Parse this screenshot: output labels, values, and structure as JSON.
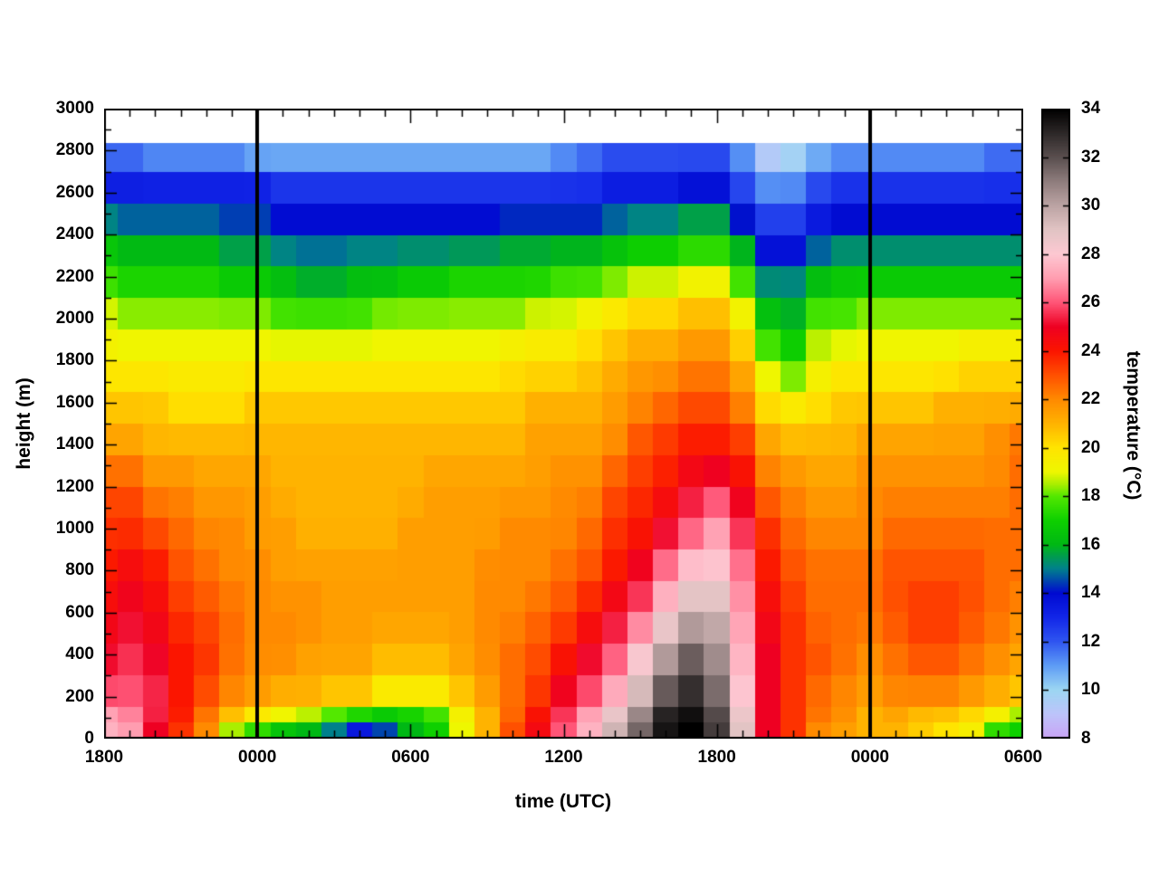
{
  "figure": {
    "background": "#ffffff",
    "frame_color": "#000000"
  },
  "chart_data": {
    "type": "heatmap",
    "title": "",
    "xlabel": "time (UTC)",
    "ylabel": "height (m)",
    "colorbar_label": "temperature (°C)",
    "x_range_hours": [
      0,
      36
    ],
    "x_minor_step_hours": 1,
    "xticks": [
      {
        "hour": 0,
        "label": "1800"
      },
      {
        "hour": 6,
        "label": "0000"
      },
      {
        "hour": 12,
        "label": "0600"
      },
      {
        "hour": 18,
        "label": "1200"
      },
      {
        "hour": 24,
        "label": "1800"
      },
      {
        "hour": 30,
        "label": "0000"
      },
      {
        "hour": 36,
        "label": "0600"
      }
    ],
    "ylim": [
      0,
      3000
    ],
    "y_minor_step": 100,
    "yticks": [
      {
        "value": 0,
        "label": "0"
      },
      {
        "value": 200,
        "label": "200"
      },
      {
        "value": 400,
        "label": "400"
      },
      {
        "value": 600,
        "label": "600"
      },
      {
        "value": 800,
        "label": "800"
      },
      {
        "value": 1000,
        "label": "1000"
      },
      {
        "value": 1200,
        "label": "1200"
      },
      {
        "value": 1400,
        "label": "1400"
      },
      {
        "value": 1600,
        "label": "1600"
      },
      {
        "value": 1800,
        "label": "1800"
      },
      {
        "value": 2000,
        "label": "2000"
      },
      {
        "value": 2200,
        "label": "2200"
      },
      {
        "value": 2400,
        "label": "2400"
      },
      {
        "value": 2600,
        "label": "2600"
      },
      {
        "value": 2800,
        "label": "2800"
      },
      {
        "value": 3000,
        "label": "3000"
      }
    ],
    "clim": [
      8,
      34
    ],
    "cticks": [
      {
        "value": 8,
        "label": "8"
      },
      {
        "value": 10,
        "label": "10"
      },
      {
        "value": 12,
        "label": "12"
      },
      {
        "value": 14,
        "label": "14"
      },
      {
        "value": 16,
        "label": "16"
      },
      {
        "value": 18,
        "label": "18"
      },
      {
        "value": 20,
        "label": "20"
      },
      {
        "value": 22,
        "label": "22"
      },
      {
        "value": 24,
        "label": "24"
      },
      {
        "value": 26,
        "label": "26"
      },
      {
        "value": 28,
        "label": "28"
      },
      {
        "value": 30,
        "label": "30"
      },
      {
        "value": 32,
        "label": "32"
      },
      {
        "value": 34,
        "label": "34"
      }
    ],
    "data_top_height_m": 2840,
    "cell_height_m": 150,
    "vertical_lines_hours": [
      6,
      30
    ],
    "grid": false,
    "colormap": [
      [
        8,
        "#C9A4F5"
      ],
      [
        9,
        "#BDC4FA"
      ],
      [
        10,
        "#9CD6F2"
      ],
      [
        11,
        "#5E9CF5"
      ],
      [
        12,
        "#2F55F0"
      ],
      [
        13,
        "#1226E8"
      ],
      [
        14,
        "#000AD1"
      ],
      [
        15,
        "#00808C"
      ],
      [
        16,
        "#00B814"
      ],
      [
        17,
        "#0ED000"
      ],
      [
        18,
        "#53E800"
      ],
      [
        18.5,
        "#AAEE00"
      ],
      [
        19,
        "#EEF700"
      ],
      [
        20,
        "#FFE400"
      ],
      [
        21,
        "#FFB300"
      ],
      [
        22,
        "#FF8A00"
      ],
      [
        23,
        "#FF5000"
      ],
      [
        24,
        "#FB1500"
      ],
      [
        25,
        "#EE0022"
      ],
      [
        26,
        "#FF5577"
      ],
      [
        27,
        "#FF9DB0"
      ],
      [
        28,
        "#FDC8D2"
      ],
      [
        29,
        "#E2C4C4"
      ],
      [
        30,
        "#BCA4A4"
      ],
      [
        31,
        "#8F7D7D"
      ],
      [
        32,
        "#5A4F4F"
      ],
      [
        33,
        "#2D2828"
      ],
      [
        34,
        "#000000"
      ]
    ],
    "heights_m": [
      0,
      100,
      200,
      400,
      600,
      800,
      1000,
      1200,
      1400,
      1600,
      1800,
      2000,
      2200,
      2400,
      2600,
      2800
    ],
    "times_hours": [
      0,
      1,
      2,
      3,
      4,
      5,
      6,
      7,
      8,
      9,
      10,
      11,
      12,
      13,
      14,
      15,
      16,
      17,
      18,
      19,
      20,
      21,
      22,
      23,
      24,
      25,
      26,
      27,
      28,
      29,
      30,
      31,
      32,
      33,
      34,
      35,
      36
    ],
    "values": [
      [
        27.5,
        27,
        26,
        25,
        24.5,
        24,
        23.5,
        23,
        21.5,
        20.5,
        19.5,
        19,
        17.5,
        16,
        13.5,
        11.5
      ],
      [
        27,
        26.5,
        26,
        25.5,
        25,
        24.5,
        23.5,
        23,
        21.5,
        20.5,
        19.5,
        18.5,
        17,
        15.5,
        13.5,
        11.5
      ],
      [
        25,
        25.5,
        25.5,
        25,
        24.5,
        24,
        23,
        22,
        21,
        20.5,
        19.5,
        18.5,
        17,
        15.5,
        13.5,
        11
      ],
      [
        23.5,
        24,
        24,
        24,
        23.5,
        23,
        22.5,
        22,
        21,
        20,
        19.5,
        18.5,
        17,
        15.5,
        13.5,
        11
      ],
      [
        22,
        22.5,
        23,
        23.5,
        23,
        22.5,
        22,
        21.5,
        21,
        20,
        19.5,
        18.5,
        17,
        15.5,
        13.5,
        11
      ],
      [
        18.5,
        21.5,
        22,
        22.5,
        22.5,
        22,
        22,
        21.5,
        21,
        20,
        19.5,
        18.5,
        16.5,
        15,
        13.5,
        11
      ],
      [
        17.5,
        20.5,
        21.5,
        22,
        22,
        22,
        21.5,
        21.5,
        21,
        20.5,
        19.5,
        18.5,
        16.5,
        15,
        13.5,
        10.5
      ],
      [
        16.5,
        20,
        21,
        22,
        22,
        21.5,
        21.5,
        21,
        21,
        20.5,
        19.5,
        18,
        16,
        14.5,
        13,
        10.5
      ],
      [
        16,
        19.5,
        21,
        21.5,
        22,
        21.5,
        21,
        21,
        21,
        20.5,
        19.5,
        18,
        15.5,
        14.5,
        13,
        10.5
      ],
      [
        15,
        19,
        20.5,
        21.5,
        21.5,
        21.5,
        21,
        21,
        21,
        20.5,
        19.5,
        18,
        15.5,
        14.5,
        13,
        10.5
      ],
      [
        13.5,
        18.5,
        20.5,
        21.5,
        21.5,
        21.5,
        21,
        21,
        21,
        20.5,
        19.5,
        18,
        16,
        14.5,
        13,
        10.5
      ],
      [
        14.5,
        17.5,
        19.5,
        21,
        21.5,
        21.5,
        21,
        21,
        21,
        20.5,
        19.5,
        18.5,
        16,
        14.5,
        13,
        10.5
      ],
      [
        16,
        17.5,
        19.5,
        21,
        21.5,
        21.5,
        21.5,
        21,
        21,
        20.5,
        19.5,
        18.5,
        16.5,
        14.5,
        13,
        10.5
      ],
      [
        17,
        18,
        19.5,
        21,
        21.5,
        21.5,
        21.5,
        21.5,
        21,
        20.5,
        19.5,
        18.5,
        16.5,
        14.5,
        13,
        10.5
      ],
      [
        19,
        19.5,
        20.5,
        21.5,
        21.5,
        21.5,
        21.5,
        21.5,
        21,
        20.5,
        19.5,
        18.5,
        17,
        14.5,
        13,
        10.5
      ],
      [
        21,
        21,
        21.5,
        22,
        22,
        22,
        21.5,
        21.5,
        21,
        20.5,
        19.5,
        18.5,
        17,
        14.5,
        13,
        10.5
      ],
      [
        23,
        22.5,
        22.5,
        22.5,
        22,
        22,
        22,
        21.5,
        21,
        20.5,
        20,
        18.5,
        17,
        15,
        13,
        10.5
      ],
      [
        24.5,
        24,
        23.5,
        23,
        22.5,
        22,
        22,
        21.5,
        21.5,
        21,
        20,
        19,
        17,
        15,
        13,
        10.5
      ],
      [
        26,
        25.5,
        25,
        24,
        23,
        22.5,
        22,
        22,
        21.5,
        21,
        20,
        19,
        17.5,
        15,
        13,
        11
      ],
      [
        27.5,
        27,
        26,
        25,
        24,
        23,
        22.5,
        22,
        21.5,
        21,
        20.5,
        19.5,
        17.5,
        15,
        13,
        11.5
      ],
      [
        29.5,
        28.5,
        27.5,
        26,
        25,
        24,
        23.5,
        23,
        22,
        21.5,
        21,
        20,
        18,
        15.5,
        13.5,
        12
      ],
      [
        31.5,
        30.5,
        29.5,
        28,
        26,
        25,
        24,
        23.5,
        23,
        22,
        21.5,
        20.5,
        18.5,
        16,
        13.5,
        12
      ],
      [
        33.5,
        33,
        32,
        30,
        28,
        26.5,
        25,
        24,
        23.5,
        22.5,
        21.5,
        20.5,
        18.5,
        16,
        13.5,
        12
      ],
      [
        34,
        33.5,
        33,
        31.5,
        29.5,
        28,
        26,
        25,
        24,
        23,
        22,
        21,
        19,
        16.5,
        14,
        12
      ],
      [
        32.5,
        32,
        31.5,
        30.5,
        29.5,
        28,
        27,
        25.5,
        24,
        23,
        22,
        21,
        19,
        16.5,
        14,
        12
      ],
      [
        29,
        28.5,
        28,
        27.5,
        27,
        26.5,
        25.5,
        24.5,
        23.5,
        22,
        21,
        19.5,
        17.5,
        15,
        12.5,
        11
      ],
      [
        25,
        25,
        25,
        25,
        24.5,
        24,
        23.5,
        22.5,
        21.5,
        20,
        18.5,
        16.5,
        15,
        13,
        11.5,
        9
      ],
      [
        23.5,
        23.5,
        23.5,
        23.5,
        23.5,
        23,
        22.5,
        22,
        21,
        19.5,
        17.5,
        16,
        15,
        13,
        11.5,
        9.5
      ],
      [
        22,
        22.5,
        22.5,
        23,
        22.5,
        22.5,
        22,
        21.5,
        21,
        20,
        19,
        18,
        16,
        14,
        12.5,
        10.5
      ],
      [
        21.5,
        22,
        22,
        22.5,
        22.5,
        22.5,
        22,
        21.5,
        21,
        20.5,
        19.5,
        18,
        16.5,
        14.5,
        13,
        11
      ],
      [
        21,
        21,
        21.5,
        22,
        22.5,
        22.5,
        22,
        22,
        21.5,
        20.5,
        19.5,
        18.5,
        16.5,
        14.5,
        13,
        11
      ],
      [
        21,
        21.5,
        22,
        22.5,
        23,
        23,
        22.5,
        22,
        21.5,
        20.5,
        19.5,
        18.5,
        16.5,
        14.5,
        13,
        11
      ],
      [
        20.5,
        21,
        22,
        23,
        23.5,
        23,
        22.5,
        22,
        21.5,
        20.5,
        19.5,
        18.5,
        16.5,
        14.5,
        13,
        11
      ],
      [
        20,
        21,
        22,
        23,
        23.5,
        23,
        22.5,
        22,
        21.5,
        21,
        19.5,
        18.5,
        16.5,
        14.5,
        13,
        11
      ],
      [
        19.5,
        20.5,
        21.5,
        22.5,
        23,
        23,
        22.5,
        22,
        21.5,
        21,
        20,
        18.5,
        16.5,
        14.5,
        13,
        11
      ],
      [
        17.5,
        20,
        21,
        22,
        22.5,
        22.5,
        22.5,
        22,
        22,
        21,
        20,
        18.5,
        16.5,
        14.5,
        13,
        11.5
      ],
      [
        17,
        19,
        20.5,
        21.5,
        22,
        22.5,
        22.5,
        22.5,
        22.5,
        21,
        20,
        18.5,
        16.5,
        14.5,
        13,
        11.5
      ]
    ]
  }
}
